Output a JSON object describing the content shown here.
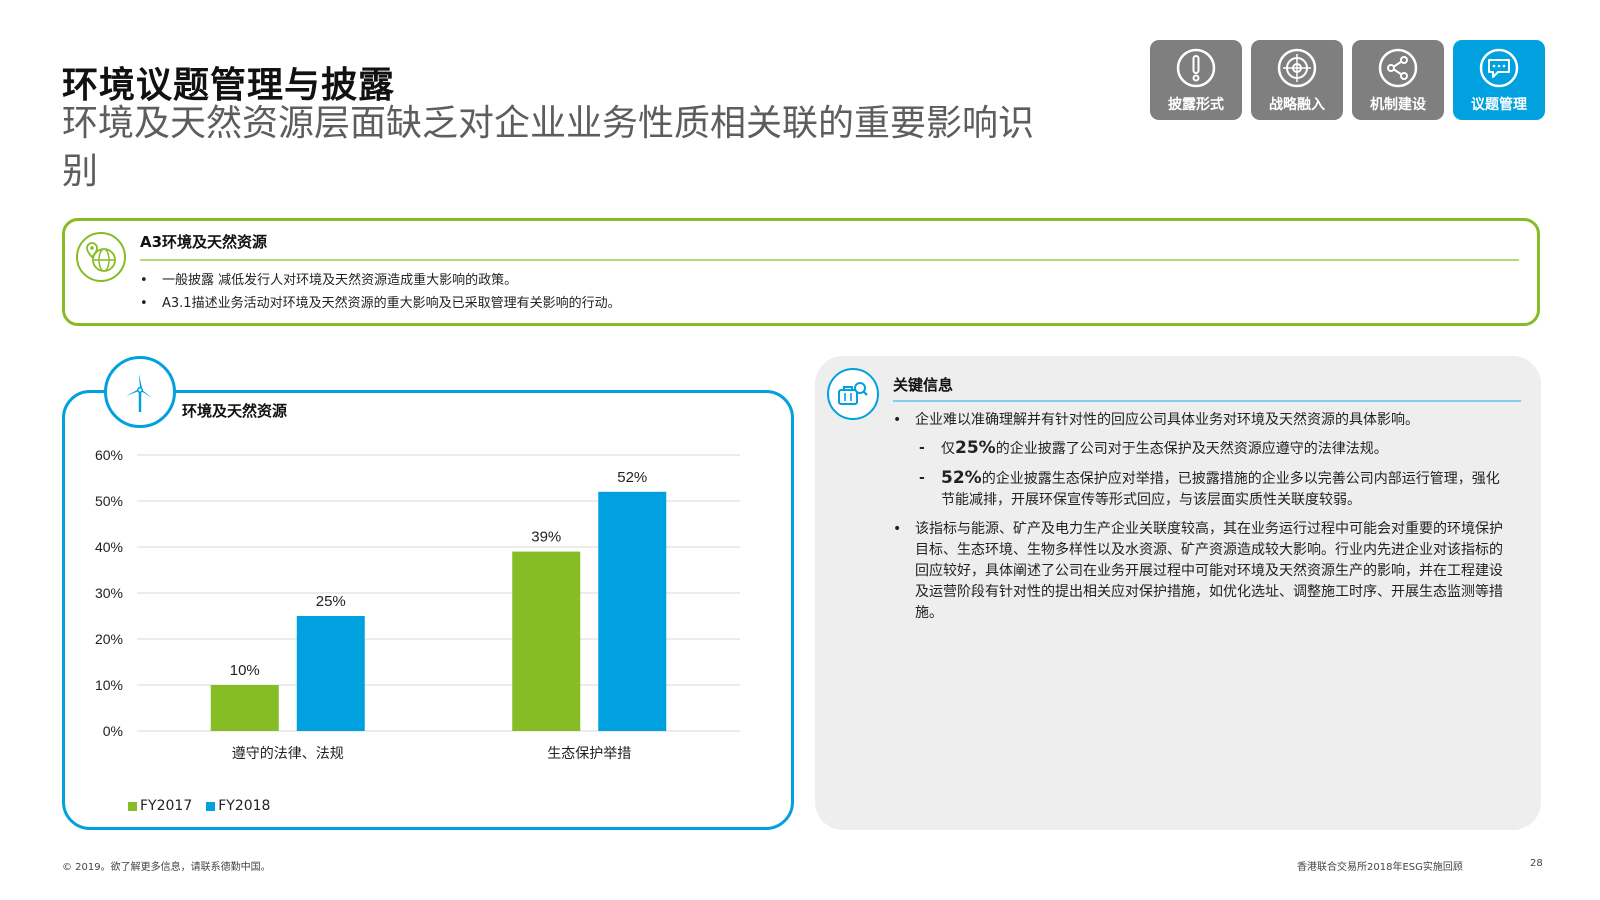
{
  "title": "环境议题管理与披露",
  "subtitle": "环境及天然资源层面缺乏对企业业务性质相关联的重要影响识别",
  "nav": [
    {
      "label": "披露形式",
      "icon": "exclamation-icon",
      "active": false
    },
    {
      "label": "战略融入",
      "icon": "target-icon",
      "active": false
    },
    {
      "label": "机制建设",
      "icon": "share-icon",
      "active": false
    },
    {
      "label": "议题管理",
      "icon": "chat-bubble-icon",
      "active": true
    }
  ],
  "a3": {
    "header": "A3环境及天然资源",
    "items": [
      "一般披露 减低发行人对环境及天然资源造成重大影响的政策。",
      "A3.1描述业务活动对环境及天然资源的重大影响及已采取管理有关影响的行动。"
    ]
  },
  "chart_data": {
    "type": "bar",
    "title": "环境及天然资源",
    "categories": [
      "遵守的法律、法规",
      "生态保护举措"
    ],
    "series": [
      {
        "name": "FY2017",
        "values": [
          10,
          39
        ],
        "color": "#86bc25"
      },
      {
        "name": "FY2018",
        "values": [
          25,
          52
        ],
        "color": "#00a1de"
      }
    ],
    "yticks": [
      "0%",
      "10%",
      "20%",
      "30%",
      "40%",
      "50%",
      "60%"
    ],
    "ylim": [
      0,
      60
    ],
    "unit": "%",
    "grid": true,
    "legend": "bottom-left"
  },
  "info": {
    "title": "关键信息",
    "p1": "企业难以准确理解并有针对性的回应公司具体业务对环境及天然资源的具体影响。",
    "s1_big": "25%",
    "s1_pre": "仅",
    "s1_rest": "的企业披露了公司对于生态保护及天然资源应遵守的法律法规。",
    "s2_big": "52%",
    "s2_rest": "的企业披露生态保护应对举措，已披露措施的企业多以完善公司内部运行管理，强化节能减排，开展环保宣传等形式回应，与该层面实质性关联度较弱。",
    "p2": "该指标与能源、矿产及电力生产企业关联度较高，其在业务运行过程中可能会对重要的环境保护目标、生态环境、生物多样性以及水资源、矿产资源造成较大影响。行业内先进企业对该指标的回应较好，具体阐述了公司在业务开展过程中可能对环境及天然资源生产的影响，并在工程建设及运营阶段有针对性的提出相关应对保护措施，如优化选址、调整施工时序、开展生态监测等措施。"
  },
  "footer": {
    "copyright": "© 2019。欲了解更多信息，请联系德勤中国。",
    "report": "香港联合交易所2018年ESG实施回顾",
    "page": "28"
  }
}
